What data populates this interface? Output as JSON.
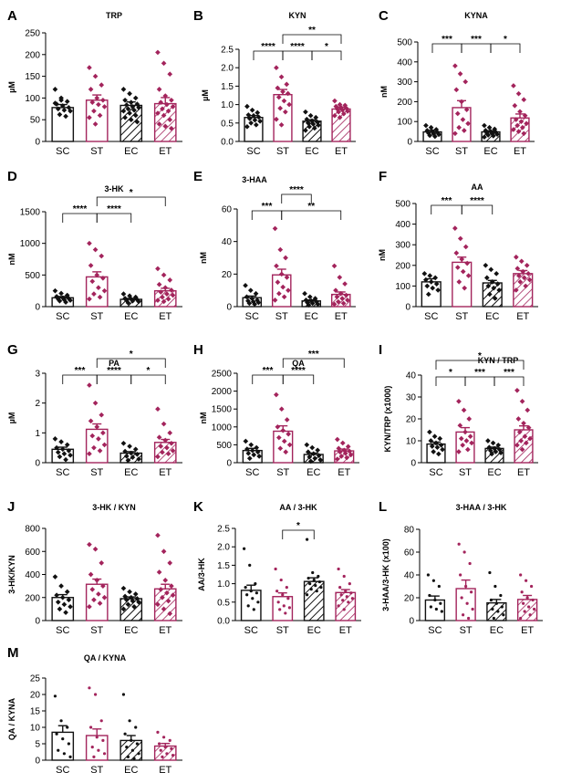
{
  "figure": {
    "description_label": "Kynurenine pathway metabolite panels"
  },
  "colors": {
    "control": "#111111",
    "treated": "#a3245c",
    "bar_fill": "#ffffff"
  },
  "groups": [
    "SC",
    "ST",
    "EC",
    "ET"
  ],
  "chart_data": [
    {
      "id": "A",
      "type": "bar",
      "title": "TRP",
      "ylabel": "µM",
      "ylim": [
        0,
        250
      ],
      "ticks": [
        0,
        50,
        100,
        150,
        200,
        250
      ],
      "categories": [
        "SC",
        "ST",
        "EC",
        "ET"
      ],
      "values": [
        78,
        95,
        83,
        87
      ],
      "sem": [
        7,
        12,
        8,
        14
      ],
      "significance": [],
      "points": [
        [
          120,
          100,
          92,
          86,
          82,
          78,
          75,
          72,
          70,
          62,
          58,
          88,
          95
        ],
        [
          170,
          150,
          130,
          120,
          100,
          95,
          90,
          85,
          80,
          70,
          60,
          55,
          40
        ],
        [
          120,
          110,
          100,
          95,
          90,
          86,
          84,
          80,
          78,
          75,
          72,
          70,
          65,
          60,
          55,
          50,
          45
        ],
        [
          205,
          180,
          155,
          120,
          105,
          95,
          90,
          85,
          80,
          75,
          70,
          65,
          60,
          50,
          40,
          35,
          30
        ]
      ]
    },
    {
      "id": "B",
      "type": "bar",
      "title": "KYN",
      "ylabel": "µM",
      "ylim": [
        0,
        2.5
      ],
      "ticks": [
        0.0,
        0.5,
        1.0,
        1.5,
        2.0,
        2.5
      ],
      "categories": [
        "SC",
        "ST",
        "EC",
        "ET"
      ],
      "values": [
        0.65,
        1.27,
        0.55,
        0.88
      ],
      "sem": [
        0.05,
        0.14,
        0.04,
        0.05
      ],
      "significance": [
        {
          "from": 0,
          "to": 1,
          "label": "****",
          "level": 0
        },
        {
          "from": 1,
          "to": 2,
          "label": "****",
          "level": 0
        },
        {
          "from": 2,
          "to": 3,
          "label": "*",
          "level": 0
        },
        {
          "from": 1,
          "to": 3,
          "label": "**",
          "level": 1
        }
      ],
      "points": [
        [
          0.95,
          0.85,
          0.78,
          0.72,
          0.7,
          0.66,
          0.62,
          0.58,
          0.55,
          0.5,
          0.45,
          0.4
        ],
        [
          2.0,
          1.75,
          1.55,
          1.45,
          1.35,
          1.3,
          1.2,
          1.1,
          1.0,
          0.9,
          0.8,
          0.6,
          0.45
        ],
        [
          0.8,
          0.7,
          0.65,
          0.6,
          0.56,
          0.53,
          0.5,
          0.47,
          0.44,
          0.4,
          0.36,
          0.3
        ],
        [
          1.1,
          1.0,
          0.98,
          0.95,
          0.92,
          0.9,
          0.88,
          0.85,
          0.82,
          0.8,
          0.75,
          0.7,
          0.65
        ]
      ]
    },
    {
      "id": "C",
      "type": "bar",
      "title": "KYNA",
      "ylabel": "nM",
      "ylim": [
        0,
        500
      ],
      "ticks": [
        0,
        100,
        200,
        300,
        400,
        500
      ],
      "categories": [
        "SC",
        "ST",
        "EC",
        "ET"
      ],
      "values": [
        48,
        170,
        48,
        118
      ],
      "sem": [
        8,
        35,
        6,
        20
      ],
      "significance": [
        {
          "from": 0,
          "to": 1,
          "label": "***",
          "level": 0
        },
        {
          "from": 1,
          "to": 2,
          "label": "***",
          "level": 0
        },
        {
          "from": 2,
          "to": 3,
          "label": "*",
          "level": 0
        }
      ],
      "points": [
        [
          80,
          70,
          60,
          55,
          50,
          45,
          42,
          38,
          35,
          30,
          25
        ],
        [
          380,
          340,
          300,
          260,
          200,
          160,
          140,
          110,
          90,
          70,
          55,
          40
        ],
        [
          80,
          70,
          62,
          55,
          50,
          46,
          42,
          40,
          36,
          32,
          28,
          22
        ],
        [
          280,
          240,
          210,
          180,
          150,
          130,
          110,
          100,
          90,
          80,
          70,
          60,
          50,
          40
        ]
      ]
    },
    {
      "id": "D",
      "type": "bar",
      "title": "3-HK",
      "ylabel": "nM",
      "ylim": [
        0,
        1500
      ],
      "ticks": [
        0,
        500,
        1000,
        1500
      ],
      "categories": [
        "SC",
        "ST",
        "EC",
        "ET"
      ],
      "values": [
        140,
        470,
        115,
        250
      ],
      "sem": [
        20,
        80,
        15,
        40
      ],
      "significance": [
        {
          "from": 0,
          "to": 1,
          "label": "****",
          "level": 0
        },
        {
          "from": 1,
          "to": 2,
          "label": "****",
          "level": 0
        },
        {
          "from": 1,
          "to": 3,
          "label": "*",
          "level": 1
        }
      ],
      "points": [
        [
          250,
          210,
          180,
          160,
          140,
          130,
          120,
          110,
          100,
          90,
          70
        ],
        [
          1000,
          900,
          800,
          650,
          500,
          450,
          400,
          300,
          250,
          200,
          150,
          120
        ],
        [
          200,
          170,
          150,
          130,
          120,
          110,
          100,
          90,
          80,
          60
        ],
        [
          600,
          500,
          420,
          350,
          300,
          260,
          230,
          200,
          180,
          150,
          120,
          100,
          80
        ]
      ]
    },
    {
      "id": "E",
      "type": "bar",
      "title": "3-HAA",
      "ylabel": "nM",
      "ylim": [
        0,
        60
      ],
      "ticks": [
        0,
        20,
        40,
        60
      ],
      "categories": [
        "SC",
        "ST",
        "EC",
        "ET"
      ],
      "values": [
        5.5,
        19.5,
        3.5,
        7.5
      ],
      "sem": [
        1.0,
        3.5,
        0.6,
        1.5
      ],
      "significance": [
        {
          "from": 0,
          "to": 1,
          "label": "***",
          "level": 0
        },
        {
          "from": 1,
          "to": 2,
          "label": "****",
          "level": 1
        },
        {
          "from": 1,
          "to": 3,
          "label": "**",
          "level": 0
        }
      ],
      "points": [
        [
          13,
          10,
          8,
          6,
          5,
          4,
          3.5,
          3,
          2.5,
          2,
          1.5
        ],
        [
          48,
          35,
          30,
          25,
          20,
          18,
          15,
          12,
          10,
          8,
          6,
          4
        ],
        [
          8,
          6,
          5,
          4,
          3.5,
          3,
          2.5,
          2,
          1.5,
          1
        ],
        [
          25,
          18,
          14,
          10,
          8,
          7,
          6,
          5,
          4,
          3,
          2,
          1.5
        ]
      ]
    },
    {
      "id": "F",
      "type": "bar",
      "title": "AA",
      "ylabel": "nM",
      "ylim": [
        0,
        500
      ],
      "ticks": [
        0,
        100,
        200,
        300,
        400,
        500
      ],
      "categories": [
        "SC",
        "ST",
        "EC",
        "ET"
      ],
      "values": [
        120,
        215,
        115,
        160
      ],
      "sem": [
        15,
        25,
        12,
        15
      ],
      "significance": [
        {
          "from": 0,
          "to": 1,
          "label": "***",
          "level": 0
        },
        {
          "from": 1,
          "to": 2,
          "label": "****",
          "level": 0
        }
      ],
      "points": [
        [
          160,
          150,
          140,
          130,
          120,
          110,
          100,
          90,
          80,
          60
        ],
        [
          380,
          330,
          290,
          260,
          230,
          210,
          190,
          170,
          150,
          120,
          90
        ],
        [
          200,
          180,
          160,
          140,
          120,
          110,
          100,
          90,
          80,
          60,
          40
        ],
        [
          240,
          220,
          200,
          185,
          170,
          160,
          150,
          140,
          130,
          120,
          100,
          80
        ]
      ]
    },
    {
      "id": "G",
      "type": "bar",
      "title": "PA",
      "ylabel": "µM",
      "ylim": [
        0,
        3
      ],
      "ticks": [
        0,
        1,
        2,
        3
      ],
      "categories": [
        "SC",
        "ST",
        "EC",
        "ET"
      ],
      "values": [
        0.45,
        1.12,
        0.32,
        0.68
      ],
      "sem": [
        0.07,
        0.18,
        0.05,
        0.1
      ],
      "significance": [
        {
          "from": 0,
          "to": 1,
          "label": "***",
          "level": 0
        },
        {
          "from": 1,
          "to": 2,
          "label": "****",
          "level": 0
        },
        {
          "from": 2,
          "to": 3,
          "label": "*",
          "level": 0
        },
        {
          "from": 1,
          "to": 3,
          "label": "*",
          "level": 1
        }
      ],
      "points": [
        [
          0.8,
          0.7,
          0.6,
          0.5,
          0.45,
          0.4,
          0.35,
          0.3,
          0.25,
          0.2,
          0.1
        ],
        [
          2.6,
          2.0,
          1.6,
          1.4,
          1.2,
          1.0,
          0.9,
          0.8,
          0.6,
          0.5,
          0.4,
          0.3
        ],
        [
          0.65,
          0.55,
          0.45,
          0.38,
          0.32,
          0.28,
          0.22,
          0.18,
          0.12,
          0.08
        ],
        [
          1.8,
          1.3,
          1.0,
          0.85,
          0.75,
          0.65,
          0.55,
          0.5,
          0.4,
          0.35,
          0.3,
          0.2
        ]
      ]
    },
    {
      "id": "H",
      "type": "bar",
      "title": "QA",
      "ylabel": "nM",
      "ylim": [
        0,
        2500
      ],
      "ticks": [
        0,
        500,
        1000,
        1500,
        2000,
        2500
      ],
      "categories": [
        "SC",
        "ST",
        "EC",
        "ET"
      ],
      "values": [
        340,
        880,
        230,
        330
      ],
      "sem": [
        60,
        150,
        40,
        50
      ],
      "significance": [
        {
          "from": 0,
          "to": 1,
          "label": "***",
          "level": 0
        },
        {
          "from": 1,
          "to": 2,
          "label": "****",
          "level": 0
        },
        {
          "from": 1,
          "to": 3,
          "label": "***",
          "level": 1
        }
      ],
      "points": [
        [
          600,
          500,
          420,
          380,
          340,
          300,
          260,
          220,
          180,
          120
        ],
        [
          1900,
          1500,
          1200,
          1000,
          900,
          800,
          700,
          600,
          500,
          400,
          300
        ],
        [
          500,
          420,
          350,
          300,
          250,
          200,
          160,
          120,
          80,
          40
        ],
        [
          650,
          550,
          450,
          400,
          350,
          320,
          300,
          260,
          220,
          180,
          140,
          100
        ]
      ]
    },
    {
      "id": "I",
      "type": "bar",
      "title": "KYN / TRP",
      "ylabel": "KYN/TRP (x1000)",
      "ylim": [
        0,
        40
      ],
      "ticks": [
        0,
        10,
        20,
        30,
        40
      ],
      "categories": [
        "SC",
        "ST",
        "EC",
        "ET"
      ],
      "values": [
        8.5,
        14,
        6.5,
        15
      ],
      "sem": [
        0.9,
        2,
        0.6,
        1.8
      ],
      "significance": [
        {
          "from": 0,
          "to": 1,
          "label": "*",
          "level": 0
        },
        {
          "from": 1,
          "to": 2,
          "label": "***",
          "level": 0
        },
        {
          "from": 2,
          "to": 3,
          "label": "***",
          "level": 0
        },
        {
          "from": 0,
          "to": 3,
          "label": "*",
          "level": 1
        }
      ],
      "points": [
        [
          14,
          12,
          11,
          10,
          9,
          8,
          7.5,
          7,
          6,
          5,
          4
        ],
        [
          28,
          24,
          20,
          17,
          14,
          12,
          11,
          10,
          9,
          8,
          6,
          5
        ],
        [
          10,
          9,
          8,
          7,
          6.5,
          6,
          5.5,
          5,
          4.5,
          4
        ],
        [
          33,
          28,
          24,
          20,
          18,
          16,
          14,
          12,
          11,
          10,
          9,
          8,
          6
        ]
      ]
    },
    {
      "id": "J",
      "type": "bar",
      "title": "3-HK / KYN",
      "ylabel": "3-HK/KYN",
      "ylim": [
        0,
        800
      ],
      "ticks": [
        0,
        200,
        400,
        600,
        800
      ],
      "categories": [
        "SC",
        "ST",
        "EC",
        "ET"
      ],
      "values": [
        200,
        315,
        190,
        275
      ],
      "sem": [
        25,
        45,
        15,
        40
      ],
      "significance": [],
      "points": [
        [
          380,
          300,
          250,
          220,
          200,
          180,
          160,
          140,
          120,
          100,
          70
        ],
        [
          660,
          620,
          500,
          400,
          350,
          300,
          270,
          230,
          200,
          180,
          150,
          120
        ],
        [
          280,
          250,
          230,
          210,
          200,
          190,
          180,
          170,
          160,
          140,
          120,
          100
        ],
        [
          740,
          600,
          500,
          420,
          350,
          300,
          270,
          240,
          220,
          200,
          170,
          140,
          100,
          60
        ]
      ]
    },
    {
      "id": "K",
      "type": "bar",
      "title": "AA / 3-HK",
      "ylabel": "AA/3-HK",
      "ylim": [
        0,
        2.5
      ],
      "ticks": [
        0.0,
        0.5,
        1.0,
        1.5,
        2.0,
        2.5
      ],
      "categories": [
        "SC",
        "ST",
        "EC",
        "ET"
      ],
      "values": [
        0.82,
        0.65,
        1.06,
        0.76
      ],
      "sem": [
        0.14,
        0.1,
        0.1,
        0.08
      ],
      "significance": [
        {
          "from": 1,
          "to": 2,
          "label": "*",
          "level": 0
        }
      ],
      "points": [
        [
          1.95,
          1.5,
          1.0,
          0.9,
          0.8,
          0.75,
          0.7,
          0.6,
          0.5,
          0.4,
          0.3
        ],
        [
          1.4,
          1.1,
          0.9,
          0.8,
          0.7,
          0.6,
          0.5,
          0.4,
          0.35,
          0.3,
          0.2
        ],
        [
          2.2,
          1.3,
          1.2,
          1.15,
          1.1,
          1.05,
          1.0,
          0.95,
          0.9,
          0.85,
          0.8,
          0.7
        ],
        [
          1.4,
          1.2,
          1.0,
          0.9,
          0.8,
          0.75,
          0.7,
          0.65,
          0.6,
          0.55,
          0.5,
          0.4,
          0.3
        ]
      ]
    },
    {
      "id": "L",
      "type": "bar",
      "title": "3-HAA / 3-HK",
      "ylabel": "3-HAA/3-HK (x100)",
      "ylim": [
        0,
        80
      ],
      "ticks": [
        0,
        20,
        40,
        60,
        80
      ],
      "categories": [
        "SC",
        "ST",
        "EC",
        "ET"
      ],
      "values": [
        18,
        28,
        15.5,
        18.5
      ],
      "sem": [
        3.5,
        7.5,
        3,
        3.5
      ],
      "significance": [],
      "points": [
        [
          40,
          35,
          30,
          22,
          18,
          15,
          12,
          10,
          8
        ],
        [
          67,
          60,
          50,
          40,
          30,
          25,
          20,
          15,
          10,
          5,
          2
        ],
        [
          42,
          30,
          22,
          18,
          15,
          12,
          10,
          8,
          5,
          2
        ],
        [
          40,
          35,
          30,
          25,
          20,
          18,
          15,
          12,
          10,
          8,
          5,
          2
        ]
      ]
    },
    {
      "id": "M",
      "type": "bar",
      "title": "QA / KYNA",
      "ylabel": "QA / KYNA",
      "ylim": [
        0,
        25
      ],
      "ticks": [
        0,
        5,
        10,
        15,
        20,
        25
      ],
      "categories": [
        "SC",
        "ST",
        "EC",
        "ET"
      ],
      "values": [
        8.5,
        7.5,
        6,
        4.3
      ],
      "sem": [
        2,
        2,
        1.5,
        0.8
      ],
      "significance": [],
      "points": [
        [
          19.5,
          12,
          10,
          8,
          6.5,
          5,
          3,
          2,
          1
        ],
        [
          22,
          20,
          12,
          10,
          7,
          6,
          4,
          3,
          2,
          1
        ],
        [
          20,
          12,
          10,
          8,
          6,
          5,
          4,
          3,
          2,
          1,
          0.5
        ],
        [
          8.5,
          7,
          6,
          5,
          4,
          3.5,
          3,
          2,
          1.5,
          1
        ]
      ]
    }
  ]
}
